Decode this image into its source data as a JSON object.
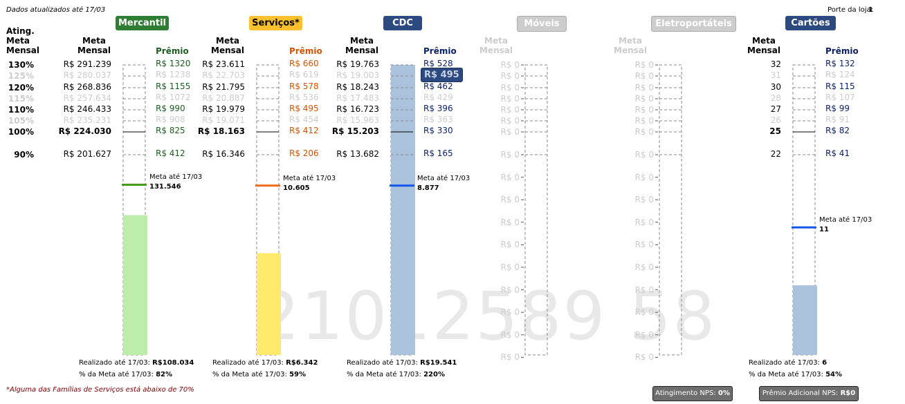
{
  "header": {
    "updated": "Dados atualizados até 17/03",
    "porte_label": "Porte da loja:",
    "porte_value": "1"
  },
  "ating": {
    "header": "Ating.\nMeta\nMensal",
    "levels": [
      "130%",
      "125%",
      "120%",
      "115%",
      "110%",
      "105%",
      "100%",
      "90%"
    ]
  },
  "colors": {
    "muted": "#cccccc"
  },
  "chart_data": [
    {
      "type": "bar",
      "family": "Mercantil",
      "pill_color": "#2e7d32",
      "fill_color": "#bdedaa",
      "meta_line_color": "#4a9a1a",
      "premio_color": "#1b5e20",
      "meta_header": "Meta\nMensal",
      "premio_header": "Prêmio",
      "meta_values": [
        "R$ 291.239",
        "R$ 280.037",
        "R$ 268.836",
        "R$ 257.634",
        "R$ 246.433",
        "R$ 235.231",
        "R$ 224.030",
        "R$ 201.627"
      ],
      "premios": [
        "R$ 1320",
        "R$ 1238",
        "R$ 1155",
        "R$ 1072",
        "R$ 990",
        "R$ 908",
        "R$ 825",
        "R$ 412"
      ],
      "meta_ate_label": "Meta até 17/03",
      "meta_ate_value": "131.546",
      "meta_ate_fraction": 0.587,
      "realizado_fraction": 0.482,
      "realizado_label": "Realizado até 17/03:",
      "realizado_value": "R$108.034",
      "pct_label": "% da Meta até 17/03:",
      "pct_value": "82%"
    },
    {
      "type": "bar",
      "family": "Serviços*",
      "pill_color": "#fbc02d",
      "pill_text_color": "#000000",
      "fill_color": "#fde96a",
      "meta_line_color": "#f06a1e",
      "premio_color": "#d35400",
      "meta_header": "Meta\nMensal",
      "premio_header": "Prêmio",
      "meta_values": [
        "R$ 23.611",
        "R$ 22.703",
        "R$ 21.795",
        "R$ 20.887",
        "R$ 19.979",
        "R$ 19.071",
        "R$ 18.163",
        "R$ 16.346"
      ],
      "premios": [
        "R$ 660",
        "R$ 619",
        "R$ 578",
        "R$ 536",
        "R$ 495",
        "R$ 454",
        "R$ 412",
        "R$ 206"
      ],
      "meta_ate_label": "Meta até 17/03",
      "meta_ate_value": "10.605",
      "meta_ate_fraction": 0.584,
      "realizado_fraction": 0.351,
      "realizado_label": "Realizado até 17/03:",
      "realizado_value": "R$6.342",
      "pct_label": "% da Meta até 17/03:",
      "pct_value": "59%"
    },
    {
      "type": "bar",
      "family": "CDC",
      "pill_color": "#2c4a80",
      "fill_color": "#abc2dc",
      "meta_line_color": "#1155ee",
      "premio_color": "#0b1f66",
      "meta_header": "Meta\nMensal",
      "premio_header": "Prêmio",
      "meta_values": [
        "R$ 19.763",
        "R$ 19.003",
        "R$ 18.243",
        "R$ 17.483",
        "R$ 16.723",
        "R$ 15.963",
        "R$ 15.203",
        "R$ 13.682"
      ],
      "premios": [
        "R$ 528",
        "R$ 495",
        "R$ 462",
        "R$ 429",
        "R$ 396",
        "R$ 363",
        "R$ 330",
        "R$ 165"
      ],
      "highlight_index": 1,
      "meta_ate_label": "Meta até 17/03",
      "meta_ate_value": "8.877",
      "meta_ate_fraction": 0.584,
      "realizado_fraction": 1.3,
      "realizado_label": "Realizado até 17/03:",
      "realizado_value": "R$19.541",
      "pct_label": "% da Meta até 17/03:",
      "pct_value": "220%"
    },
    {
      "type": "bar",
      "family": "Móveis",
      "disabled": true,
      "pill_color": "#cccccc",
      "meta_header": "Meta\nMensal",
      "axis_labels": [
        "R$ 0",
        "R$ 0",
        "R$ 0",
        "R$ 0",
        "R$ 0",
        "R$ 0",
        "R$ 0",
        "R$ 0",
        "R$ 0",
        "R$ 0",
        "R$ 0",
        "R$ 0",
        "R$ 0",
        "R$ 0",
        "R$ 0",
        "R$ 0",
        "R$ 0"
      ]
    },
    {
      "type": "bar",
      "family": "Eletroportáteis",
      "disabled": true,
      "pill_color": "#cccccc",
      "meta_header": "Meta\nMensal",
      "axis_labels": [
        "R$ 0",
        "R$ 0",
        "R$ 0",
        "R$ 0",
        "R$ 0",
        "R$ 0",
        "R$ 0",
        "R$ 0",
        "R$ 0",
        "R$ 0",
        "R$ 0",
        "R$ 0",
        "R$ 0",
        "R$ 0",
        "R$ 0",
        "R$ 0",
        "R$ 0"
      ]
    },
    {
      "type": "bar",
      "family": "Cartões",
      "pill_color": "#2c4a80",
      "fill_color": "#abc2dc",
      "meta_line_color": "#1155ee",
      "premio_color": "#0b1f66",
      "meta_header": "Meta\nMensal",
      "premio_header": "Prêmio",
      "meta_values": [
        "32",
        "31",
        "30",
        "28",
        "27",
        "26",
        "25",
        "22"
      ],
      "premios": [
        "R$ 132",
        "R$ 124",
        "R$ 115",
        "R$ 107",
        "R$ 99",
        "R$ 91",
        "R$ 82",
        "R$ 41"
      ],
      "meta_ate_label": "Meta até 17/03",
      "meta_ate_value": "11",
      "meta_ate_fraction": 0.44,
      "realizado_fraction": 0.24,
      "realizado_label": "Realizado até 17/03:",
      "realizado_value": "6",
      "pct_label": "% da Meta até 17/03:",
      "pct_value": "54%"
    }
  ],
  "footer": {
    "note": "*Alguma das Famílias de Serviços está abaixo de 70%",
    "nps_label": "Atingimento NPS:",
    "nps_value": "0%",
    "premio_nps_label": "Prêmio Adicional NPS:",
    "premio_nps_value": "R$0"
  },
  "watermark": "21012589 58"
}
